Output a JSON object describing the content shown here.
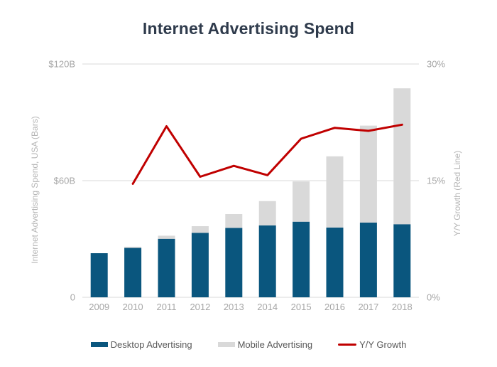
{
  "title": "Internet Advertising Spend",
  "chart_data": {
    "type": "bar",
    "subtype": "stacked bars with overlaid line (combo chart)",
    "title": "Internet Advertising Spend",
    "categories": [
      "2009",
      "2010",
      "2011",
      "2012",
      "2013",
      "2014",
      "2015",
      "2016",
      "2017",
      "2018"
    ],
    "series": [
      {
        "name": "Desktop Advertising",
        "type": "bar",
        "stack": "spend",
        "axis": "left",
        "color": "#0a567e",
        "values": [
          22.7,
          25.4,
          30.1,
          33.2,
          35.7,
          37.0,
          38.9,
          35.9,
          38.4,
          37.6
        ]
      },
      {
        "name": "Mobile Advertising",
        "type": "bar",
        "stack": "spend",
        "axis": "left",
        "color": "#d9d9d9",
        "values": [
          0,
          0.6,
          1.6,
          3.4,
          7.1,
          12.5,
          20.7,
          36.6,
          49.9,
          69.9
        ]
      },
      {
        "name": "Y/Y Growth",
        "type": "line",
        "axis": "right",
        "color": "#c00000",
        "values": [
          null,
          14.6,
          22.0,
          15.5,
          16.9,
          15.7,
          20.4,
          21.8,
          21.4,
          22.2
        ]
      }
    ],
    "left_axis": {
      "label": "Internet Advertising Spend, USA (Bars)",
      "unit": "$B",
      "range": [
        0,
        120
      ],
      "ticks": [
        "$120B",
        "$60B",
        "0"
      ]
    },
    "right_axis": {
      "label": "Y/Y Growth (Red Line)",
      "unit": "%",
      "range": [
        0,
        30
      ],
      "ticks": [
        "30%",
        "15%",
        "0%"
      ]
    },
    "xlabel": "",
    "ylabel": "Internet Advertising Spend, USA (Bars)",
    "grid": "horizontal gridlines at 0, 60B, 120B",
    "legend_position": "bottom"
  },
  "colors": {
    "background": "#ffffff",
    "title_text": "#2f3b4c",
    "tick_text": "#a6a6a6",
    "axis_title_text": "#b5b5b5",
    "gridline": "#d9d9d9",
    "legend_text": "#595959",
    "desktop_bar": "#0a567e",
    "mobile_bar": "#d9d9d9",
    "growth_line": "#c00000"
  }
}
